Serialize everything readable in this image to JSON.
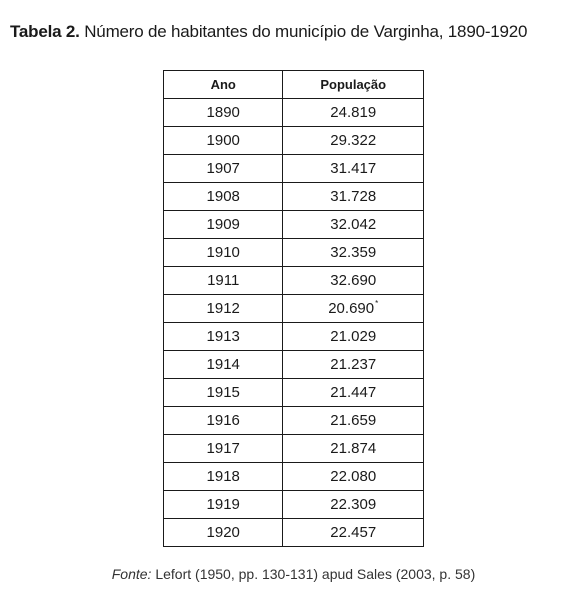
{
  "caption": {
    "label": "Tabela 2.",
    "title": "Número de habitantes do município de Varginha, 1890-1920"
  },
  "table": {
    "headers": [
      "Ano",
      "População"
    ],
    "rows": [
      {
        "year": "1890",
        "population": "24.819",
        "mark": ""
      },
      {
        "year": "1900",
        "population": "29.322",
        "mark": ""
      },
      {
        "year": "1907",
        "population": "31.417",
        "mark": ""
      },
      {
        "year": "1908",
        "population": "31.728",
        "mark": ""
      },
      {
        "year": "1909",
        "population": "32.042",
        "mark": ""
      },
      {
        "year": "1910",
        "population": "32.359",
        "mark": ""
      },
      {
        "year": "1911",
        "population": "32.690",
        "mark": ""
      },
      {
        "year": "1912",
        "population": "20.690",
        "mark": "*"
      },
      {
        "year": "1913",
        "population": "21.029",
        "mark": ""
      },
      {
        "year": "1914",
        "population": "21.237",
        "mark": ""
      },
      {
        "year": "1915",
        "population": "21.447",
        "mark": ""
      },
      {
        "year": "1916",
        "population": "21.659",
        "mark": ""
      },
      {
        "year": "1917",
        "population": "21.874",
        "mark": ""
      },
      {
        "year": "1918",
        "population": "22.080",
        "mark": ""
      },
      {
        "year": "1919",
        "population": "22.309",
        "mark": ""
      },
      {
        "year": "1920",
        "population": "22.457",
        "mark": ""
      }
    ]
  },
  "source": {
    "label": "Fonte:",
    "text": "Lefort (1950, pp. 130-131) apud Sales (2003, p. 58)"
  }
}
